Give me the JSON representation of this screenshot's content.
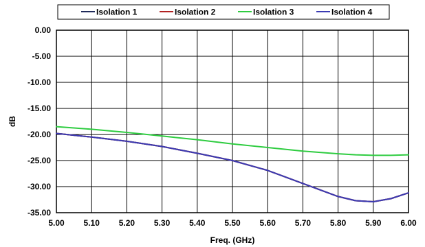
{
  "chart_data": {
    "type": "line",
    "xlabel": "Freq. (GHz)",
    "ylabel": "dB",
    "xlim": [
      5.0,
      6.0
    ],
    "ylim": [
      -35.0,
      0.0
    ],
    "x_ticks": [
      "5.00",
      "5.10",
      "5.20",
      "5.30",
      "5.40",
      "5.50",
      "5.60",
      "5.70",
      "5.80",
      "5.90",
      "6.00"
    ],
    "y_ticks": [
      "0.00",
      "-5.00",
      "-10.00",
      "-15.00",
      "-20.00",
      "-25.00",
      "-30.00",
      "-35.00"
    ],
    "grid": true,
    "legend_position": "top",
    "series": [
      {
        "name": "Isolation 1",
        "color": "#1f2a5a",
        "x": [
          5.0,
          5.1,
          5.2,
          5.3,
          5.4,
          5.5,
          5.6,
          5.7,
          5.8,
          5.85,
          5.9,
          5.95,
          6.0
        ],
        "y": [
          -19.8,
          -20.5,
          -21.3,
          -22.3,
          -23.6,
          -25.0,
          -26.9,
          -29.4,
          -31.9,
          -32.7,
          -32.9,
          -32.3,
          -31.2
        ]
      },
      {
        "name": "Isolation 2",
        "color": "#b22222",
        "x": [
          5.0,
          5.1,
          5.2,
          5.3,
          5.4,
          5.5,
          5.6,
          5.7,
          5.8,
          5.85,
          5.9,
          5.95,
          6.0
        ],
        "y": [
          -19.8,
          -20.5,
          -21.3,
          -22.3,
          -23.6,
          -25.0,
          -26.9,
          -29.4,
          -31.9,
          -32.7,
          -32.9,
          -32.3,
          -31.2
        ]
      },
      {
        "name": "Isolation 3",
        "color": "#2ecc40",
        "x": [
          5.0,
          5.1,
          5.2,
          5.3,
          5.4,
          5.5,
          5.6,
          5.7,
          5.8,
          5.85,
          5.9,
          5.95,
          6.0
        ],
        "y": [
          -18.5,
          -19.0,
          -19.6,
          -20.3,
          -21.0,
          -21.8,
          -22.5,
          -23.2,
          -23.7,
          -23.9,
          -24.0,
          -24.0,
          -23.9
        ]
      },
      {
        "name": "Isolation 4",
        "color": "#3b3bb3",
        "x": [
          5.0,
          5.1,
          5.2,
          5.3,
          5.4,
          5.5,
          5.6,
          5.7,
          5.8,
          5.85,
          5.9,
          5.95,
          6.0
        ],
        "y": [
          -19.8,
          -20.5,
          -21.3,
          -22.3,
          -23.6,
          -25.0,
          -26.9,
          -29.4,
          -31.9,
          -32.7,
          -32.9,
          -32.3,
          -31.2
        ]
      }
    ]
  }
}
